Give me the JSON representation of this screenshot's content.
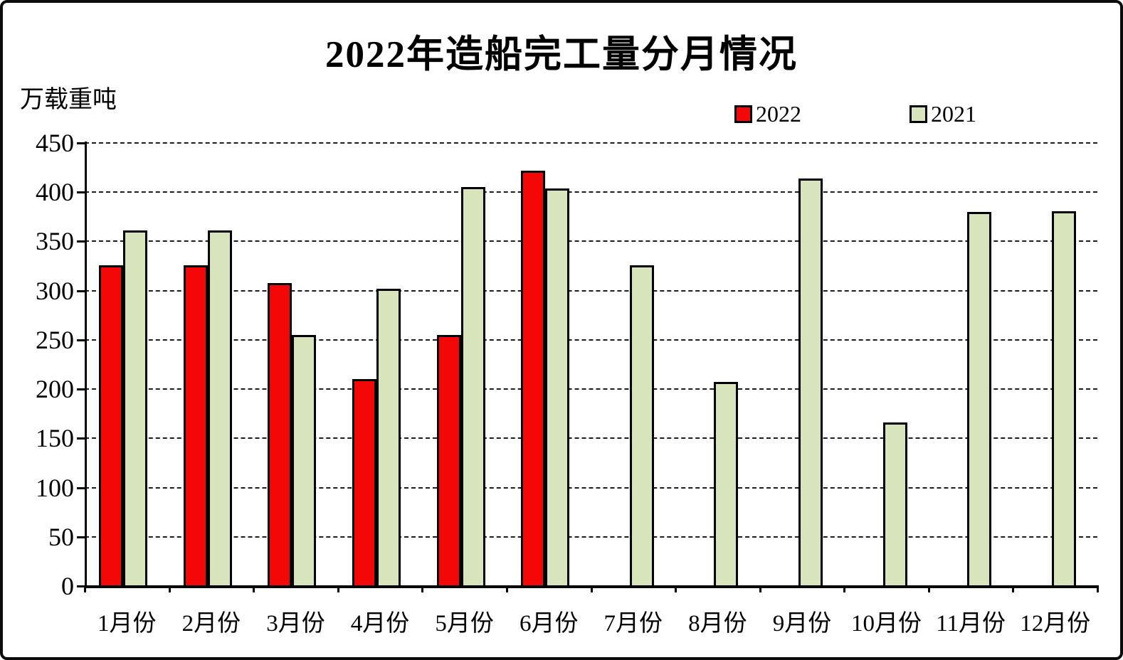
{
  "chart_data": {
    "type": "bar",
    "title": "2022年造船完工量分月情况",
    "ylabel_unit": "万载重吨",
    "categories": [
      "1月份",
      "2月份",
      "3月份",
      "4月份",
      "5月份",
      "6月份",
      "7月份",
      "8月份",
      "9月份",
      "10月份",
      "11月份",
      "12月份"
    ],
    "series": [
      {
        "name": "2022",
        "color": "#F40707",
        "values": [
          326,
          326,
          308,
          210,
          255,
          422,
          null,
          null,
          null,
          null,
          null,
          null
        ]
      },
      {
        "name": "2021",
        "color": "#D8E4BC",
        "values": [
          361,
          361,
          255,
          302,
          405,
          404,
          326,
          207,
          414,
          166,
          380,
          381
        ]
      }
    ],
    "ylim": [
      0,
      450
    ],
    "ytick_step": 50,
    "yticks": [
      0,
      50,
      100,
      150,
      200,
      250,
      300,
      350,
      400,
      450
    ],
    "grid": "horizontal-dashed",
    "legend_position": "top-right",
    "bar_border_color": "#000000",
    "xlabel": "",
    "ylabel": ""
  }
}
